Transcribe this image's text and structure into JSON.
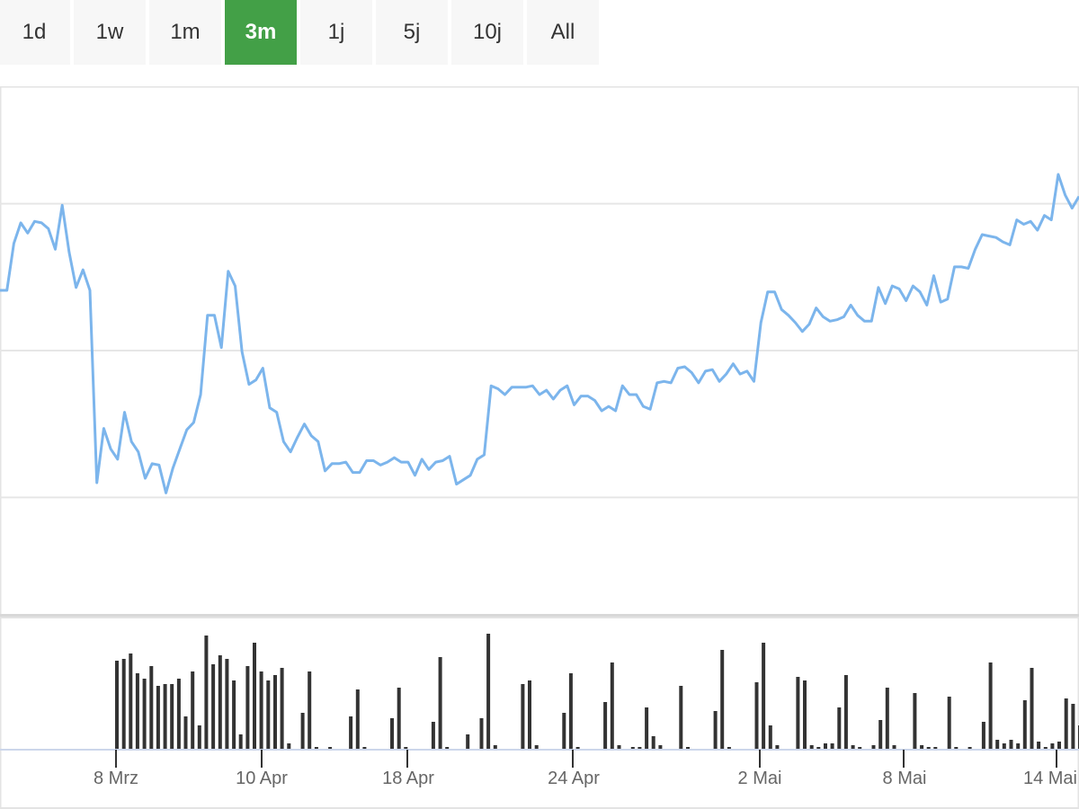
{
  "range_buttons": [
    {
      "label": "1d",
      "active": false
    },
    {
      "label": "1w",
      "active": false
    },
    {
      "label": "1m",
      "active": false
    },
    {
      "label": "3m",
      "active": true
    },
    {
      "label": "1j",
      "active": false
    },
    {
      "label": "5j",
      "active": false
    },
    {
      "label": "10j",
      "active": false
    },
    {
      "label": "All",
      "active": false
    }
  ],
  "colors": {
    "active_button": "#43a047",
    "line": "#7cb5ec",
    "volume_bars": "#333333",
    "gridline": "#e6e6e6"
  },
  "chart_data": {
    "type": "line",
    "title": "",
    "xlabel": "",
    "ylabel": "",
    "grid": true,
    "legend": "none",
    "x_ticks": [
      "8 Mrz",
      "10 Apr",
      "18 Apr",
      "24 Apr",
      "2 Mai",
      "8 Mai",
      "14 Mai"
    ],
    "series": [
      {
        "kind": "price_line",
        "values": [
          54.1,
          54.1,
          57.3,
          58.7,
          58.0,
          58.8,
          58.7,
          58.3,
          56.9,
          59.9,
          56.7,
          54.3,
          55.5,
          54.1,
          41.0,
          44.7,
          43.3,
          42.6,
          45.8,
          43.8,
          43.1,
          41.3,
          42.3,
          42.2,
          40.3,
          42.0,
          43.3,
          44.6,
          45.1,
          47.0,
          52.4,
          52.4,
          50.2,
          55.4,
          54.4,
          49.9,
          47.7,
          48.0,
          48.8,
          46.1,
          45.8,
          43.8,
          43.1,
          44.1,
          45.0,
          44.2,
          43.8,
          41.8,
          42.3,
          42.3,
          42.4,
          41.7,
          41.7,
          42.5,
          42.5,
          42.2,
          42.4,
          42.7,
          42.4,
          42.4,
          41.5,
          42.6,
          41.9,
          42.4,
          42.5,
          42.8,
          40.9,
          41.2,
          41.5,
          42.6,
          42.9,
          47.6,
          47.4,
          47.0,
          47.5,
          47.5,
          47.5,
          47.6,
          47.0,
          47.3,
          46.7,
          47.3,
          47.6,
          46.3,
          46.9,
          46.9,
          46.6,
          45.9,
          46.2,
          45.9,
          47.6,
          47.0,
          47.0,
          46.2,
          46.0,
          47.8,
          47.9,
          47.8,
          48.8,
          48.9,
          48.5,
          47.8,
          48.6,
          48.7,
          47.9,
          48.4,
          49.1,
          48.4,
          48.6,
          47.9,
          51.9,
          54.0,
          54.0,
          52.8,
          52.4,
          51.9,
          51.3,
          51.8,
          52.9,
          52.3,
          52.0,
          52.1,
          52.3,
          53.1,
          52.4,
          52.0,
          52.0,
          54.3,
          53.2,
          54.4,
          54.2,
          53.4,
          54.4,
          54.0,
          53.1,
          55.1,
          53.3,
          53.5,
          55.7,
          55.7,
          55.6,
          56.9,
          57.9,
          57.8,
          57.7,
          57.4,
          57.2,
          58.9,
          58.6,
          58.8,
          58.2,
          59.2,
          58.9,
          62.0,
          60.6,
          59.7,
          60.5
        ],
        "y_range": [
          32,
          68
        ],
        "gridlines": [
          40,
          50,
          60
        ]
      },
      {
        "kind": "volume_bars",
        "values": [
          98,
          100,
          106,
          84,
          78,
          92,
          70,
          72,
          72,
          78,
          36,
          86,
          26,
          126,
          94,
          104,
          100,
          76,
          16,
          92,
          118,
          86,
          76,
          82,
          90,
          6,
          0,
          40,
          86,
          2,
          0,
          2,
          0,
          0,
          36,
          66,
          2,
          0,
          0,
          0,
          34,
          68,
          2,
          0,
          0,
          0,
          30,
          102,
          2,
          0,
          0,
          16,
          0,
          34,
          128,
          4,
          0,
          0,
          0,
          72,
          76,
          4,
          0,
          0,
          0,
          40,
          84,
          2,
          0,
          0,
          0,
          52,
          96,
          4,
          0,
          2,
          2,
          46,
          14,
          4,
          0,
          0,
          70,
          2,
          0,
          0,
          0,
          42,
          110,
          2,
          0,
          0,
          0,
          74,
          118,
          26,
          4,
          0,
          0,
          80,
          76,
          4,
          2,
          6,
          6,
          46,
          82,
          4,
          2,
          0,
          4,
          32,
          68,
          4,
          0,
          0,
          62,
          4,
          2,
          2,
          0,
          58,
          2,
          0,
          2,
          0,
          30,
          96,
          10,
          6,
          10,
          6,
          54,
          90,
          8,
          2,
          6,
          8,
          56,
          50,
          26,
          6,
          8
        ]
      }
    ]
  }
}
